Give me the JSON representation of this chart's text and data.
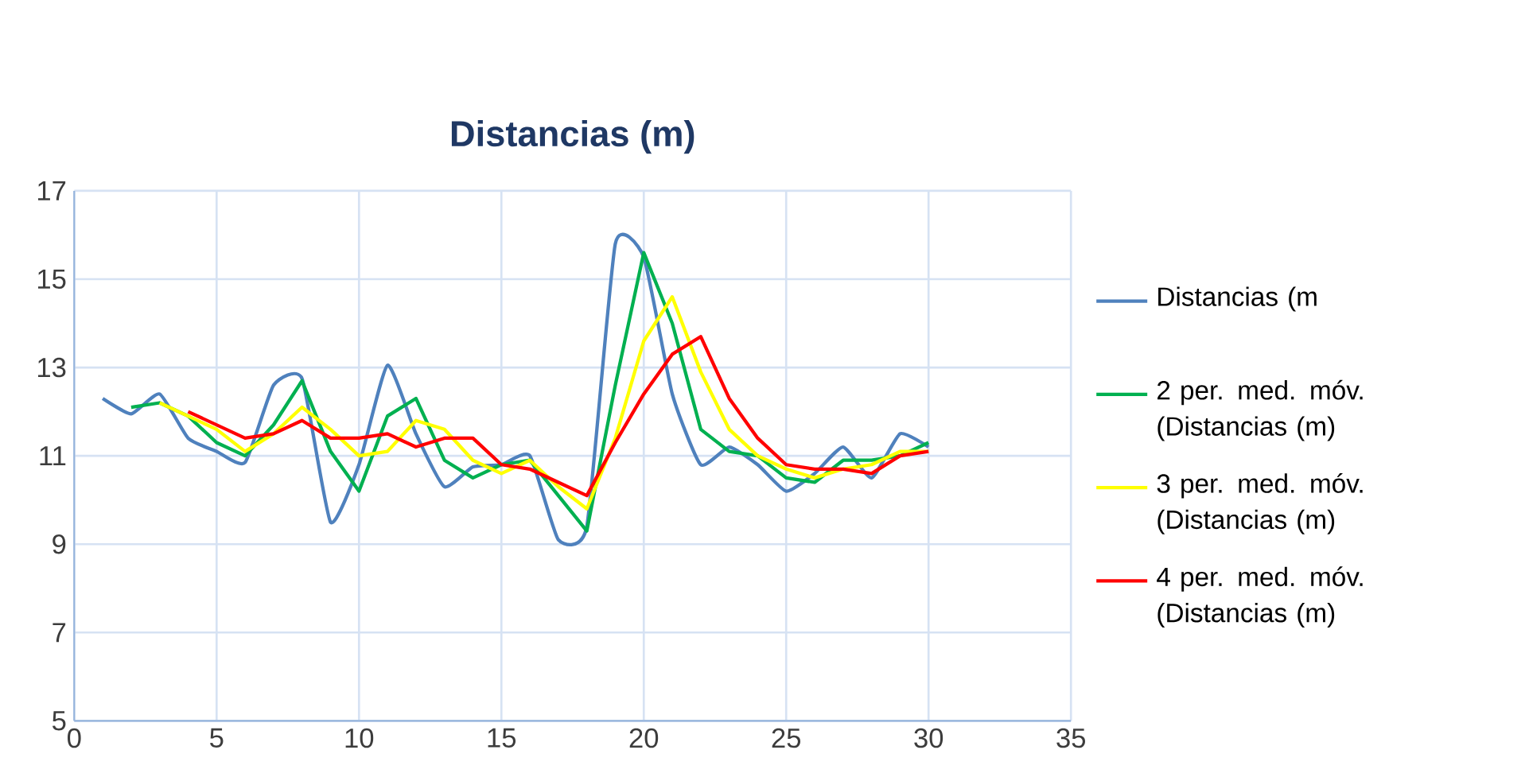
{
  "chart_data": {
    "type": "line",
    "title": "Distancias (m)",
    "xlim": [
      0,
      35
    ],
    "xticks": [
      0,
      5,
      10,
      15,
      20,
      25,
      30,
      35
    ],
    "ylim": [
      5,
      17
    ],
    "yticks": [
      5,
      7,
      9,
      11,
      13,
      15,
      17
    ],
    "grid": true,
    "legend": "right",
    "marker": "none",
    "line_style": "solid",
    "series": [
      {
        "name": "Distancias (m",
        "color": "#4f81bd",
        "x": [
          1,
          2,
          3,
          4,
          5,
          6,
          7,
          8,
          9,
          10,
          11,
          12,
          13,
          14,
          15,
          16,
          17,
          18,
          19,
          20,
          21,
          22,
          23,
          24,
          25,
          26,
          27,
          28,
          29,
          30
        ],
        "values": [
          12.3,
          11.95,
          12.4,
          11.4,
          11.1,
          10.85,
          12.6,
          12.75,
          9.5,
          10.8,
          13.05,
          11.5,
          10.3,
          10.75,
          10.8,
          11.0,
          9.1,
          9.4,
          15.8,
          15.5,
          12.4,
          10.8,
          11.2,
          10.8,
          10.2,
          10.6,
          11.2,
          10.5,
          11.5,
          11.2
        ]
      },
      {
        "name": "2 per. med. móv. (Distancias (m)",
        "color": "#00b050",
        "x": [
          2,
          3,
          4,
          5,
          6,
          7,
          8,
          9,
          10,
          11,
          12,
          13,
          14,
          15,
          16,
          17,
          18,
          19,
          20,
          21,
          22,
          23,
          24,
          25,
          26,
          27,
          28,
          29,
          30
        ],
        "values": [
          12.1,
          12.2,
          11.9,
          11.3,
          11.0,
          11.7,
          12.7,
          11.1,
          10.2,
          11.9,
          12.3,
          10.9,
          10.5,
          10.8,
          10.9,
          10.1,
          9.3,
          12.6,
          15.6,
          14.0,
          11.6,
          11.1,
          11.0,
          10.5,
          10.4,
          10.9,
          10.9,
          11.0,
          11.3
        ]
      },
      {
        "name": "3 per. med. móv. (Distancias (m)",
        "color": "#ffff00",
        "x": [
          3,
          4,
          5,
          6,
          7,
          8,
          9,
          10,
          11,
          12,
          13,
          14,
          15,
          16,
          17,
          18,
          19,
          20,
          21,
          22,
          23,
          24,
          25,
          26,
          27,
          28,
          29,
          30
        ],
        "values": [
          12.2,
          11.9,
          11.6,
          11.1,
          11.5,
          12.1,
          11.6,
          11.0,
          11.1,
          11.8,
          11.6,
          10.9,
          10.6,
          10.9,
          10.3,
          9.8,
          11.4,
          13.6,
          14.6,
          12.9,
          11.6,
          11.0,
          10.7,
          10.5,
          10.7,
          10.8,
          11.1,
          11.1
        ]
      },
      {
        "name": "4 per. med. móv. (Distancias (m)",
        "color": "#ff0000",
        "x": [
          4,
          5,
          6,
          7,
          8,
          9,
          10,
          11,
          12,
          13,
          14,
          15,
          16,
          17,
          18,
          19,
          20,
          21,
          22,
          23,
          24,
          25,
          26,
          27,
          28,
          29,
          30
        ],
        "values": [
          12.0,
          11.7,
          11.4,
          11.5,
          11.8,
          11.4,
          11.4,
          11.5,
          11.2,
          11.4,
          11.4,
          10.8,
          10.7,
          10.4,
          10.1,
          11.3,
          12.4,
          13.3,
          13.7,
          12.3,
          11.4,
          10.8,
          10.7,
          10.7,
          10.6,
          11.0,
          11.1
        ]
      }
    ]
  }
}
